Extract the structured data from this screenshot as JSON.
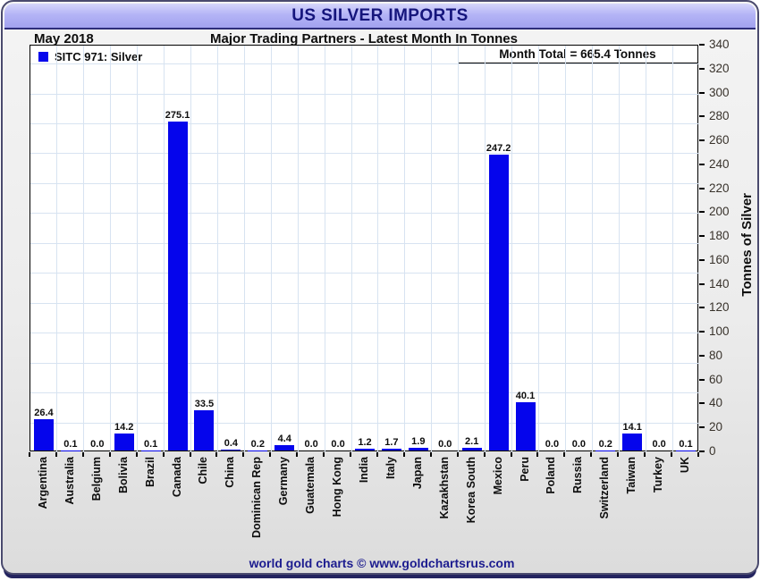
{
  "header": {
    "title": "US SILVER IMPORTS",
    "date_label": "May 2018",
    "subtitle": "Major Trading Partners - Latest Month In Tonnes"
  },
  "footer": {
    "credit": "world gold charts © www.goldchartsrus.com"
  },
  "chart_data": {
    "type": "bar",
    "title": "US SILVER IMPORTS",
    "subtitle": "Major Trading Partners - Latest Month In Tonnes",
    "period": "May 2018",
    "legend_label": "SITC 971: Silver",
    "annotation": "Month Total = 665.4 Tonnes",
    "month_total": 665.4,
    "ylabel": "Tonnes of Silver",
    "xlabel": "",
    "ylim": [
      0,
      340
    ],
    "ytick_step": 20,
    "hgrid_step": 25,
    "grid": true,
    "legend_position": "top-left",
    "bar_color": "#0505ec",
    "gridline_color": "#d7e3f1",
    "categories": [
      "Argentina",
      "Australia",
      "Belgium",
      "Bolivia",
      "Brazil",
      "Canada",
      "Chile",
      "China",
      "Dominican Rep",
      "Germany",
      "Guatemala",
      "Hong Kong",
      "India",
      "Italy",
      "Japan",
      "Kazakhstan",
      "Korea South",
      "Mexico",
      "Peru",
      "Poland",
      "Russia",
      "Switzerland",
      "Taiwan",
      "Turkey",
      "UK"
    ],
    "values": [
      26.4,
      0.1,
      0.0,
      14.2,
      0.1,
      275.1,
      33.5,
      0.4,
      0.2,
      4.4,
      0.0,
      0.0,
      1.2,
      1.7,
      1.9,
      0.0,
      2.1,
      247.2,
      40.1,
      0.0,
      0.0,
      0.2,
      14.1,
      0.0,
      0.1
    ]
  }
}
